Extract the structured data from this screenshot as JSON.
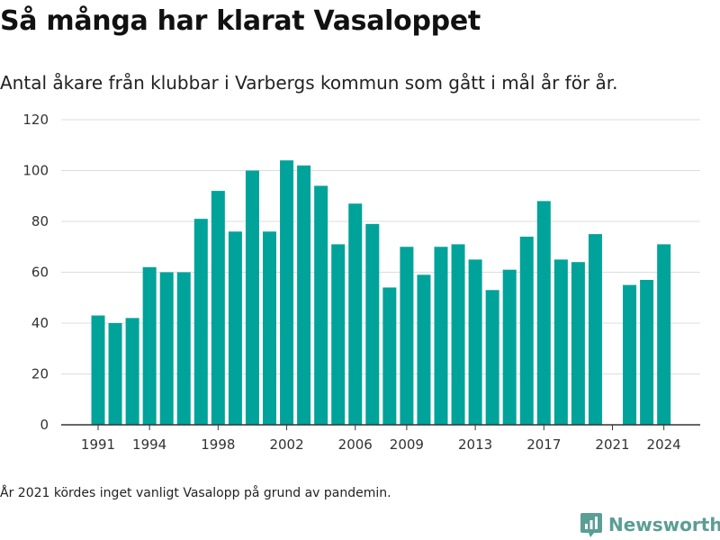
{
  "title": "Så många har klarat Vasaloppet",
  "subtitle": "Antal åkare från klubbar i Varbergs kommun som gått i mål år för år.",
  "footnote": "År 2021 kördes inget vanligt Vasalopp på grund av pandemin.",
  "brand": {
    "name": "Newsworthy",
    "icon": "newsworthy-logo-icon",
    "color": "#5a9e96"
  },
  "colors": {
    "bar": "#00a39a",
    "grid": "#dddddd",
    "axis": "#333333"
  },
  "chart_data": {
    "type": "bar",
    "title": "Så många har klarat Vasaloppet",
    "xlabel": "",
    "ylabel": "",
    "ylim": [
      0,
      120
    ],
    "yticks": [
      0,
      20,
      40,
      60,
      80,
      100,
      120
    ],
    "xtick_labels": [
      "1991",
      "1994",
      "1998",
      "2002",
      "2006",
      "2009",
      "2013",
      "2017",
      "2021",
      "2024"
    ],
    "grid": true,
    "categories": [
      1991,
      1992,
      1993,
      1994,
      1995,
      1996,
      1997,
      1998,
      1999,
      2000,
      2001,
      2002,
      2003,
      2004,
      2005,
      2006,
      2007,
      2008,
      2009,
      2010,
      2011,
      2012,
      2013,
      2014,
      2015,
      2016,
      2017,
      2018,
      2019,
      2020,
      2021,
      2022,
      2023,
      2024
    ],
    "values": [
      43,
      40,
      42,
      62,
      60,
      60,
      81,
      92,
      76,
      100,
      76,
      104,
      102,
      94,
      71,
      87,
      79,
      54,
      70,
      59,
      70,
      71,
      65,
      53,
      61,
      74,
      88,
      65,
      64,
      75,
      null,
      55,
      57,
      71
    ]
  }
}
